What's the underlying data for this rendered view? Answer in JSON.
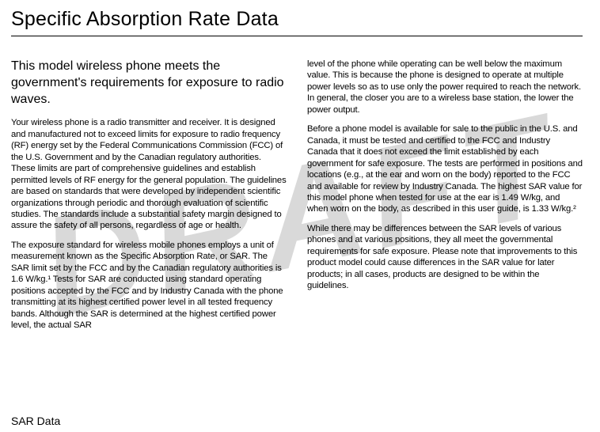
{
  "watermark": "DRAFT",
  "title": "Specific Absorption Rate Data",
  "subtitle": "This model wireless phone meets the government's requirements for exposure to radio waves.",
  "left_paragraphs": [
    "Your wireless phone is a radio transmitter and receiver. It is designed and manufactured not to exceed limits for exposure to radio frequency (RF) energy set by the Federal Communications Commission (FCC) of the U.S. Government and by the Canadian regulatory authorities. These limits are part of comprehensive guidelines and establish permitted levels of RF energy for the general population. The guidelines are based on standards that were developed by independent scientific organizations through periodic and thorough evaluation of scientific studies. The standards include a substantial safety margin designed to assure the safety of all persons, regardless of age or health.",
    "The exposure standard for wireless mobile phones employs a unit of measurement known as the Specific Absorption Rate, or SAR. The SAR limit set by the FCC and by the Canadian regulatory authorities is 1.6 W/kg.¹ Tests for SAR are conducted using standard operating positions accepted by the FCC and by Industry Canada with the phone transmitting at its highest certified power level in all tested frequency bands. Although the SAR is determined at the highest certified power level, the actual SAR"
  ],
  "right_paragraphs": [
    "level of the phone while operating can be well below the maximum value. This is because the phone is designed to operate at multiple power levels so as to use only the power required to reach the network. In general, the closer you are to a wireless base station, the lower the power output.",
    "Before a phone model is available for sale to the public in the U.S. and Canada, it must be tested and certified to the FCC and Industry Canada that it does not exceed the limit established by each government for safe exposure. The tests are performed in positions and locations (e.g., at the ear and worn on the body) reported to the FCC and available for review by Industry Canada. The highest SAR value for this model phone when tested for use at the ear is 1.49 W/kg, and when worn on the body, as described in this user guide, is 1.33 W/kg.²",
    "While there may be differences between the SAR levels of various phones and at various positions, they all meet the governmental requirements for safe exposure. Please note that improvements to this product model could cause differences in the SAR value for later products; in all cases, products are designed to be within the guidelines."
  ],
  "footer": "SAR Data"
}
